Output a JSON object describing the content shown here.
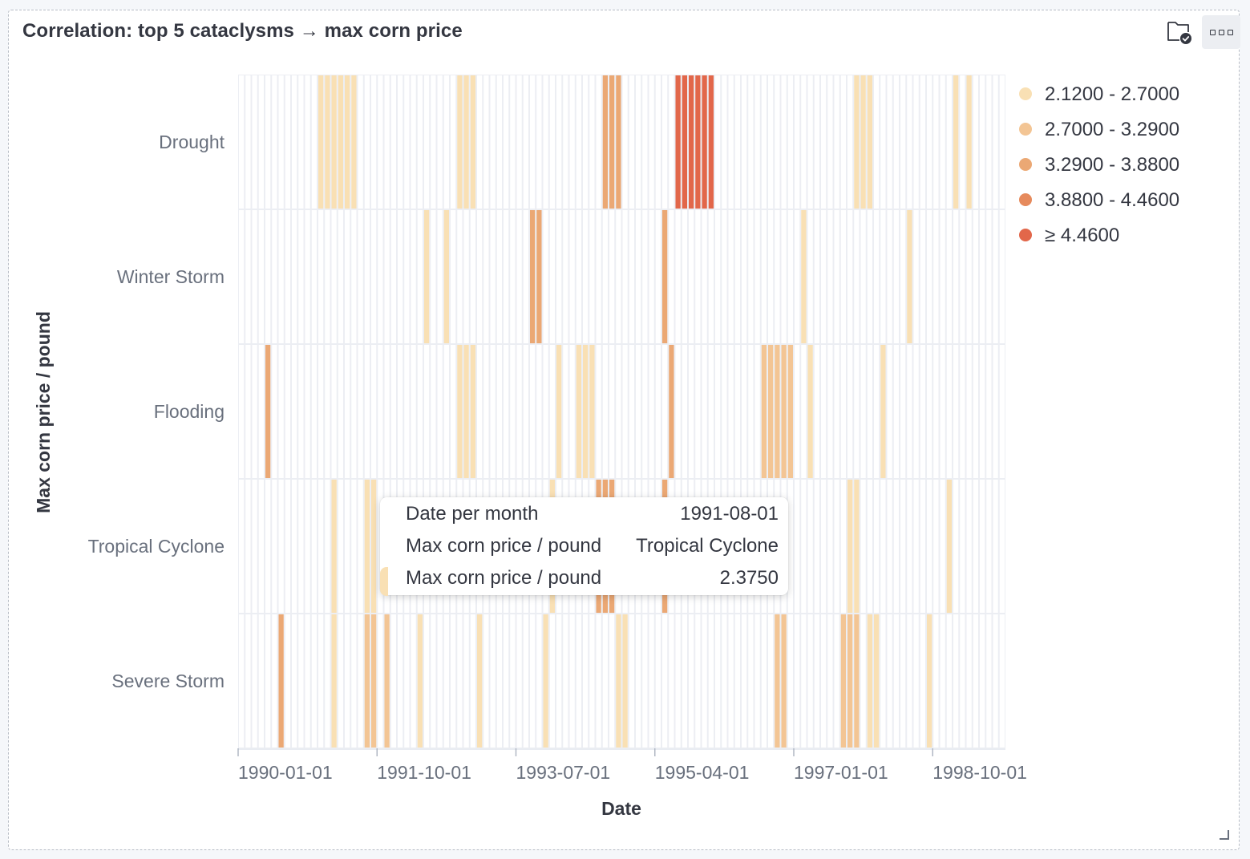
{
  "panel": {
    "title": "Correlation: top 5 cataclysms → max corn price",
    "actions": [
      {
        "icon": "inspect-folder-check-icon"
      },
      {
        "icon": "panel-options-icon"
      }
    ]
  },
  "colors": {
    "band1": "#f9e0b4",
    "band2": "#f3c594",
    "band3": "#eba874",
    "band4": "#e68a5c",
    "band5": "#e2674a",
    "grid_cell": "#eceef3"
  },
  "chart_data": {
    "type": "heatmap",
    "title": "Correlation: top 5 cataclysms → max corn price",
    "xlabel": "Date",
    "ylabel": "Max corn price / pound",
    "x_interval": "month",
    "x_range": [
      "1990-01-01",
      "1999-08-01"
    ],
    "x_tick_labels": [
      "1990-01-01",
      "1991-10-01",
      "1993-07-01",
      "1995-04-01",
      "1997-01-01",
      "1998-10-01"
    ],
    "y_categories": [
      "Drought",
      "Winter Storm",
      "Flooding",
      "Tropical Cyclone",
      "Severe Storm"
    ],
    "legend": {
      "position": "right",
      "bands": [
        {
          "label": "2.1200 - 2.7000",
          "min": 2.12,
          "max": 2.7,
          "color": "#f9e0b4"
        },
        {
          "label": "2.7000 - 3.2900",
          "min": 2.7,
          "max": 3.29,
          "color": "#f3c594"
        },
        {
          "label": "3.2900 - 3.8800",
          "min": 3.29,
          "max": 3.88,
          "color": "#eba874"
        },
        {
          "label": "3.8800 - 4.4600",
          "min": 3.88,
          "max": 4.46,
          "color": "#e68a5c"
        },
        {
          "label": "≥ 4.4600",
          "min": 4.46,
          "max": null,
          "color": "#e2674a"
        }
      ]
    },
    "cells": {
      "Drought": [
        [
          "1991-01-01",
          2.4
        ],
        [
          "1991-02-01",
          2.4
        ],
        [
          "1991-03-01",
          2.4
        ],
        [
          "1991-04-01",
          2.4
        ],
        [
          "1991-05-01",
          2.4
        ],
        [
          "1991-06-01",
          2.4
        ],
        [
          "1992-10-01",
          2.6
        ],
        [
          "1992-11-01",
          2.6
        ],
        [
          "1992-12-01",
          2.6
        ],
        [
          "1994-08-01",
          3.5
        ],
        [
          "1994-09-01",
          3.5
        ],
        [
          "1994-10-01",
          3.5
        ],
        [
          "1995-07-01",
          4.6
        ],
        [
          "1995-08-01",
          4.6
        ],
        [
          "1995-09-01",
          4.6
        ],
        [
          "1995-10-01",
          4.6
        ],
        [
          "1995-11-01",
          4.6
        ],
        [
          "1995-12-01",
          4.6
        ],
        [
          "1997-10-01",
          2.6
        ],
        [
          "1997-11-01",
          2.6
        ],
        [
          "1997-12-01",
          2.6
        ],
        [
          "1999-01-01",
          2.3
        ],
        [
          "1999-03-01",
          2.3
        ]
      ],
      "Winter Storm": [
        [
          "1992-05-01",
          2.4
        ],
        [
          "1992-08-01",
          2.4
        ],
        [
          "1993-09-01",
          3.4
        ],
        [
          "1993-10-01",
          3.4
        ],
        [
          "1995-05-01",
          3.8
        ],
        [
          "1997-02-01",
          2.3
        ],
        [
          "1998-06-01",
          2.3
        ]
      ],
      "Flooding": [
        [
          "1990-05-01",
          3.4
        ],
        [
          "1992-10-01",
          2.6
        ],
        [
          "1992-11-01",
          2.6
        ],
        [
          "1992-12-01",
          2.6
        ],
        [
          "1994-01-01",
          2.5
        ],
        [
          "1994-04-01",
          2.6
        ],
        [
          "1994-05-01",
          2.6
        ],
        [
          "1994-06-01",
          2.6
        ],
        [
          "1995-06-01",
          3.7
        ],
        [
          "1996-08-01",
          3.0
        ],
        [
          "1996-09-01",
          3.0
        ],
        [
          "1996-10-01",
          3.0
        ],
        [
          "1996-11-01",
          3.0
        ],
        [
          "1996-12-01",
          3.0
        ],
        [
          "1997-03-01",
          2.3
        ],
        [
          "1998-02-01",
          2.4
        ]
      ],
      "Tropical Cyclone": [
        [
          "1991-03-01",
          2.3
        ],
        [
          "1991-08-01",
          2.375
        ],
        [
          "1991-09-01",
          2.375
        ],
        [
          "1993-12-01",
          2.3
        ],
        [
          "1994-07-01",
          3.5
        ],
        [
          "1994-08-01",
          3.5
        ],
        [
          "1994-09-01",
          3.5
        ],
        [
          "1995-05-01",
          3.8
        ],
        [
          "1997-09-01",
          2.4
        ],
        [
          "1997-10-01",
          2.4
        ],
        [
          "1998-12-01",
          2.3
        ]
      ],
      "Severe Storm": [
        [
          "1990-07-01",
          3.3
        ],
        [
          "1991-03-01",
          2.4
        ],
        [
          "1991-08-01",
          3.0
        ],
        [
          "1991-09-01",
          3.0
        ],
        [
          "1991-11-01",
          2.8
        ],
        [
          "1992-04-01",
          2.5
        ],
        [
          "1993-01-01",
          2.6
        ],
        [
          "1993-11-01",
          2.4
        ],
        [
          "1994-10-01",
          2.5
        ],
        [
          "1994-11-01",
          2.5
        ],
        [
          "1996-10-01",
          3.1
        ],
        [
          "1996-11-01",
          3.1
        ],
        [
          "1997-08-01",
          3.2
        ],
        [
          "1997-09-01",
          3.2
        ],
        [
          "1997-10-01",
          3.2
        ],
        [
          "1997-12-01",
          2.6
        ],
        [
          "1997-13-01",
          2.6
        ],
        [
          "1998-09-01",
          2.4
        ]
      ]
    }
  },
  "tooltip": {
    "rows": [
      {
        "label": "Date per month",
        "value": "1991-08-01"
      },
      {
        "label": "Max corn price / pound",
        "value": "Tropical Cyclone"
      },
      {
        "label": "Max corn price / pound",
        "value": "2.3750",
        "swatch": "#f9e0b4"
      }
    ]
  }
}
